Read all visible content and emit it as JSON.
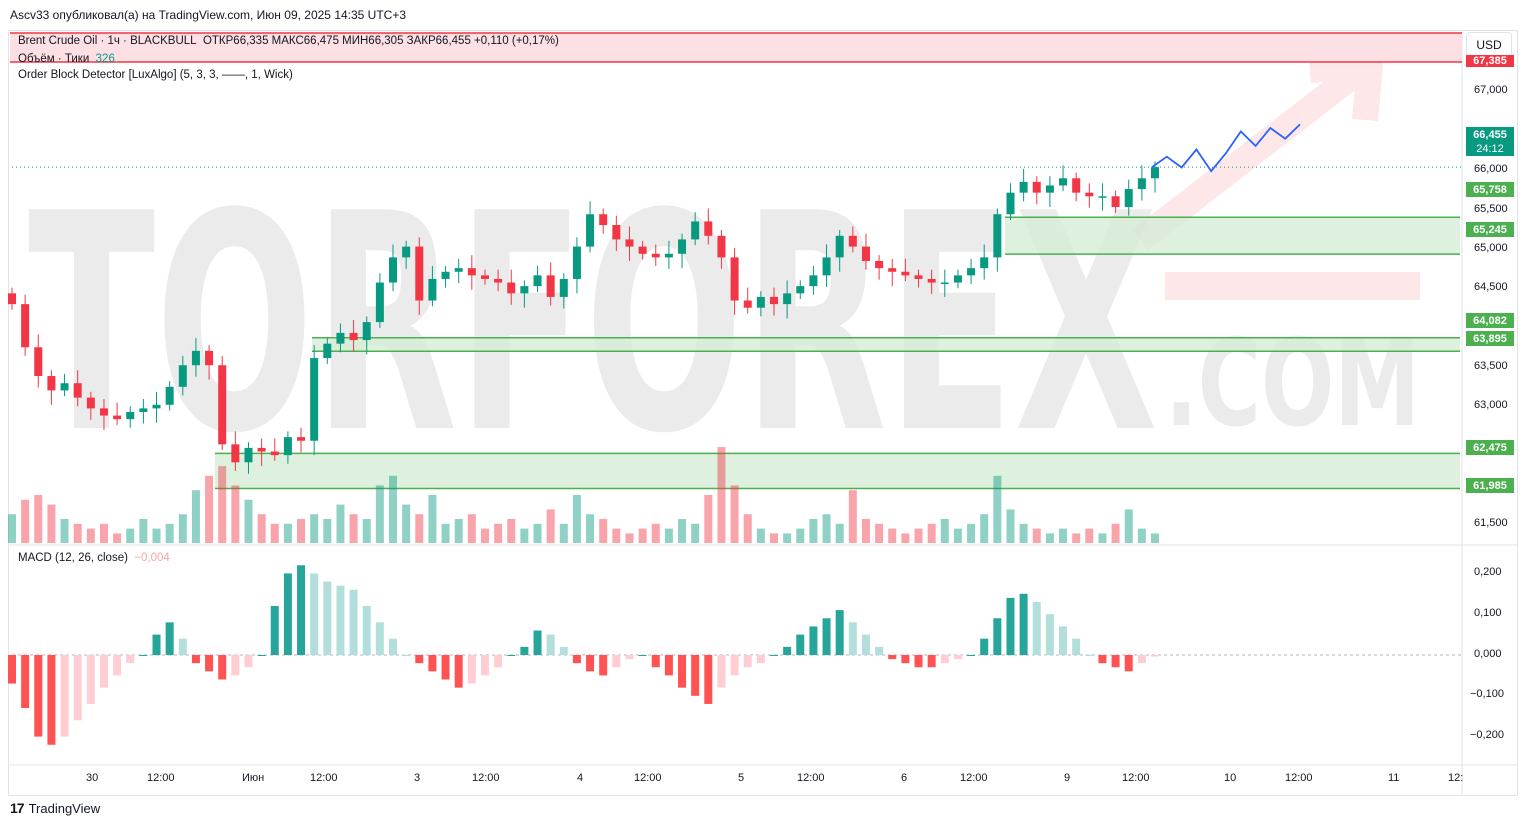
{
  "header": {
    "published": "Ascv33 опубликовал(а) на TradingView.com, Июн 09, 2025 14:35 UTC+3"
  },
  "currency_button": "USD",
  "legend": {
    "symbol": "Brent Crude Oil · 1ч · BLACKBULL",
    "ohlc": "ОТКР66,335  МАКС66,475  МИН66,305  ЗАКР66,455  +0,110 (+0,17%)",
    "volume_label": "Объём · Тики",
    "volume_value": "326",
    "indicator": "Order Block Detector [LuxAlgo] (5, 3, 3, ——, 1, Wick)",
    "macd_label": "MACD (12, 26, close)",
    "macd_value": "−0,004"
  },
  "price_axis": [
    "67,000",
    "66,000",
    "65,500",
    "65,000",
    "64,500",
    "63,500",
    "63,000",
    "61,500"
  ],
  "macd_axis": [
    "0,200",
    "0,100",
    "0,000",
    "−0,100",
    "−0,200"
  ],
  "price_labels": {
    "top_cut": "67,385",
    "current": "66,455",
    "countdown": "24:12",
    "ob1_top": "65,758",
    "ob1_bottom": "65,245",
    "ob2_top": "64,082",
    "ob2_bottom": "63,895",
    "ob3_top": "62,475",
    "ob3_bottom": "61,985"
  },
  "time_axis": [
    "30",
    "12:00",
    "Июн",
    "12:00",
    "3",
    "12:00",
    "4",
    "12:00",
    "5",
    "12:00",
    "6",
    "12:00",
    "9",
    "12:00",
    "10",
    "12:00",
    "11",
    "12:"
  ],
  "watermark": {
    "main": "TORFOREX",
    "suffix": ".COM"
  },
  "footer": {
    "brand": "TradingView"
  },
  "colors": {
    "up": "#089981",
    "down": "#f23645",
    "ob_fill": "#d4edd6",
    "ob_line": "#4caf50",
    "projection": "#2962ff",
    "alert_fill": "#fde0e3",
    "alert_line": "#f23645"
  },
  "chart_data": {
    "type": "candlestick",
    "title": "Brent Crude Oil · 1ч · BLACKBULL",
    "timeframe": "1h",
    "y_range": [
      61.2,
      67.5
    ],
    "close_series": [
      64.55,
      63.95,
      63.55,
      63.35,
      63.45,
      63.25,
      63.1,
      63.0,
      62.95,
      63.05,
      63.1,
      63.15,
      63.4,
      63.7,
      63.9,
      63.7,
      62.6,
      62.35,
      62.55,
      62.5,
      62.45,
      62.7,
      62.65,
      63.8,
      64.0,
      64.15,
      64.05,
      64.3,
      64.85,
      65.2,
      65.35,
      64.6,
      64.9,
      65.0,
      65.05,
      64.95,
      64.9,
      64.85,
      64.7,
      64.8,
      64.95,
      64.65,
      64.9,
      65.35,
      65.8,
      65.65,
      65.45,
      65.35,
      65.25,
      65.2,
      65.25,
      65.45,
      65.7,
      65.5,
      65.2,
      64.6,
      64.5,
      64.65,
      64.55,
      64.7,
      64.8,
      64.95,
      65.2,
      65.5,
      65.35,
      65.15,
      65.05,
      65.0,
      64.95,
      64.9,
      64.85,
      64.85,
      64.95,
      65.05,
      65.2,
      65.8,
      66.1,
      66.25,
      66.1,
      66.2,
      66.3,
      66.1,
      66.05,
      66.05,
      65.9,
      66.15,
      66.3,
      66.455
    ],
    "volume_series": [
      6,
      9,
      10,
      8,
      5,
      4,
      3,
      4,
      2,
      3,
      5,
      3,
      4,
      6,
      11,
      14,
      16,
      12,
      9,
      6,
      4,
      4,
      5,
      6,
      5,
      8,
      6,
      5,
      12,
      14,
      8,
      6,
      10,
      4,
      5,
      6,
      3,
      4,
      5,
      3,
      4,
      7,
      4,
      10,
      6,
      5,
      3,
      2,
      3,
      4,
      3,
      5,
      4,
      10,
      20,
      12,
      6,
      3,
      2,
      2,
      3,
      5,
      6,
      4,
      11,
      5,
      4,
      3,
      2,
      3,
      4,
      5,
      3,
      4,
      6,
      14,
      7,
      4,
      3,
      2,
      3,
      2,
      3,
      2,
      4,
      7,
      3,
      2
    ],
    "macd_histogram": [
      -0.07,
      -0.13,
      -0.2,
      -0.22,
      -0.2,
      -0.16,
      -0.12,
      -0.08,
      -0.05,
      -0.02,
      0.0,
      0.05,
      0.08,
      0.04,
      -0.02,
      -0.04,
      -0.06,
      -0.05,
      -0.03,
      0.0,
      0.12,
      0.2,
      0.22,
      0.2,
      0.18,
      0.17,
      0.16,
      0.12,
      0.08,
      0.04,
      0.0,
      -0.02,
      -0.04,
      -0.06,
      -0.08,
      -0.07,
      -0.05,
      -0.03,
      0.0,
      0.02,
      0.06,
      0.05,
      0.02,
      -0.02,
      -0.04,
      -0.05,
      -0.03,
      -0.01,
      0.0,
      -0.03,
      -0.05,
      -0.08,
      -0.1,
      -0.12,
      -0.08,
      -0.05,
      -0.03,
      -0.02,
      0.0,
      0.02,
      0.05,
      0.07,
      0.09,
      0.11,
      0.08,
      0.05,
      0.02,
      -0.01,
      -0.02,
      -0.03,
      -0.03,
      -0.02,
      -0.01,
      0.0,
      0.04,
      0.09,
      0.14,
      0.15,
      0.13,
      0.1,
      0.07,
      0.04,
      0.0,
      -0.02,
      -0.03,
      -0.04,
      -0.02,
      -0.004
    ],
    "macd_range": [
      -0.25,
      0.25
    ],
    "order_blocks": [
      {
        "top": 65.758,
        "bottom": 65.245
      },
      {
        "top": 64.082,
        "bottom": 63.895
      },
      {
        "top": 62.475,
        "bottom": 61.985
      }
    ],
    "last_price": 66.455,
    "projection": [
      66.455,
      66.6,
      66.45,
      66.7,
      66.4,
      66.65,
      66.95,
      66.75,
      67.0,
      66.85,
      67.05
    ]
  }
}
